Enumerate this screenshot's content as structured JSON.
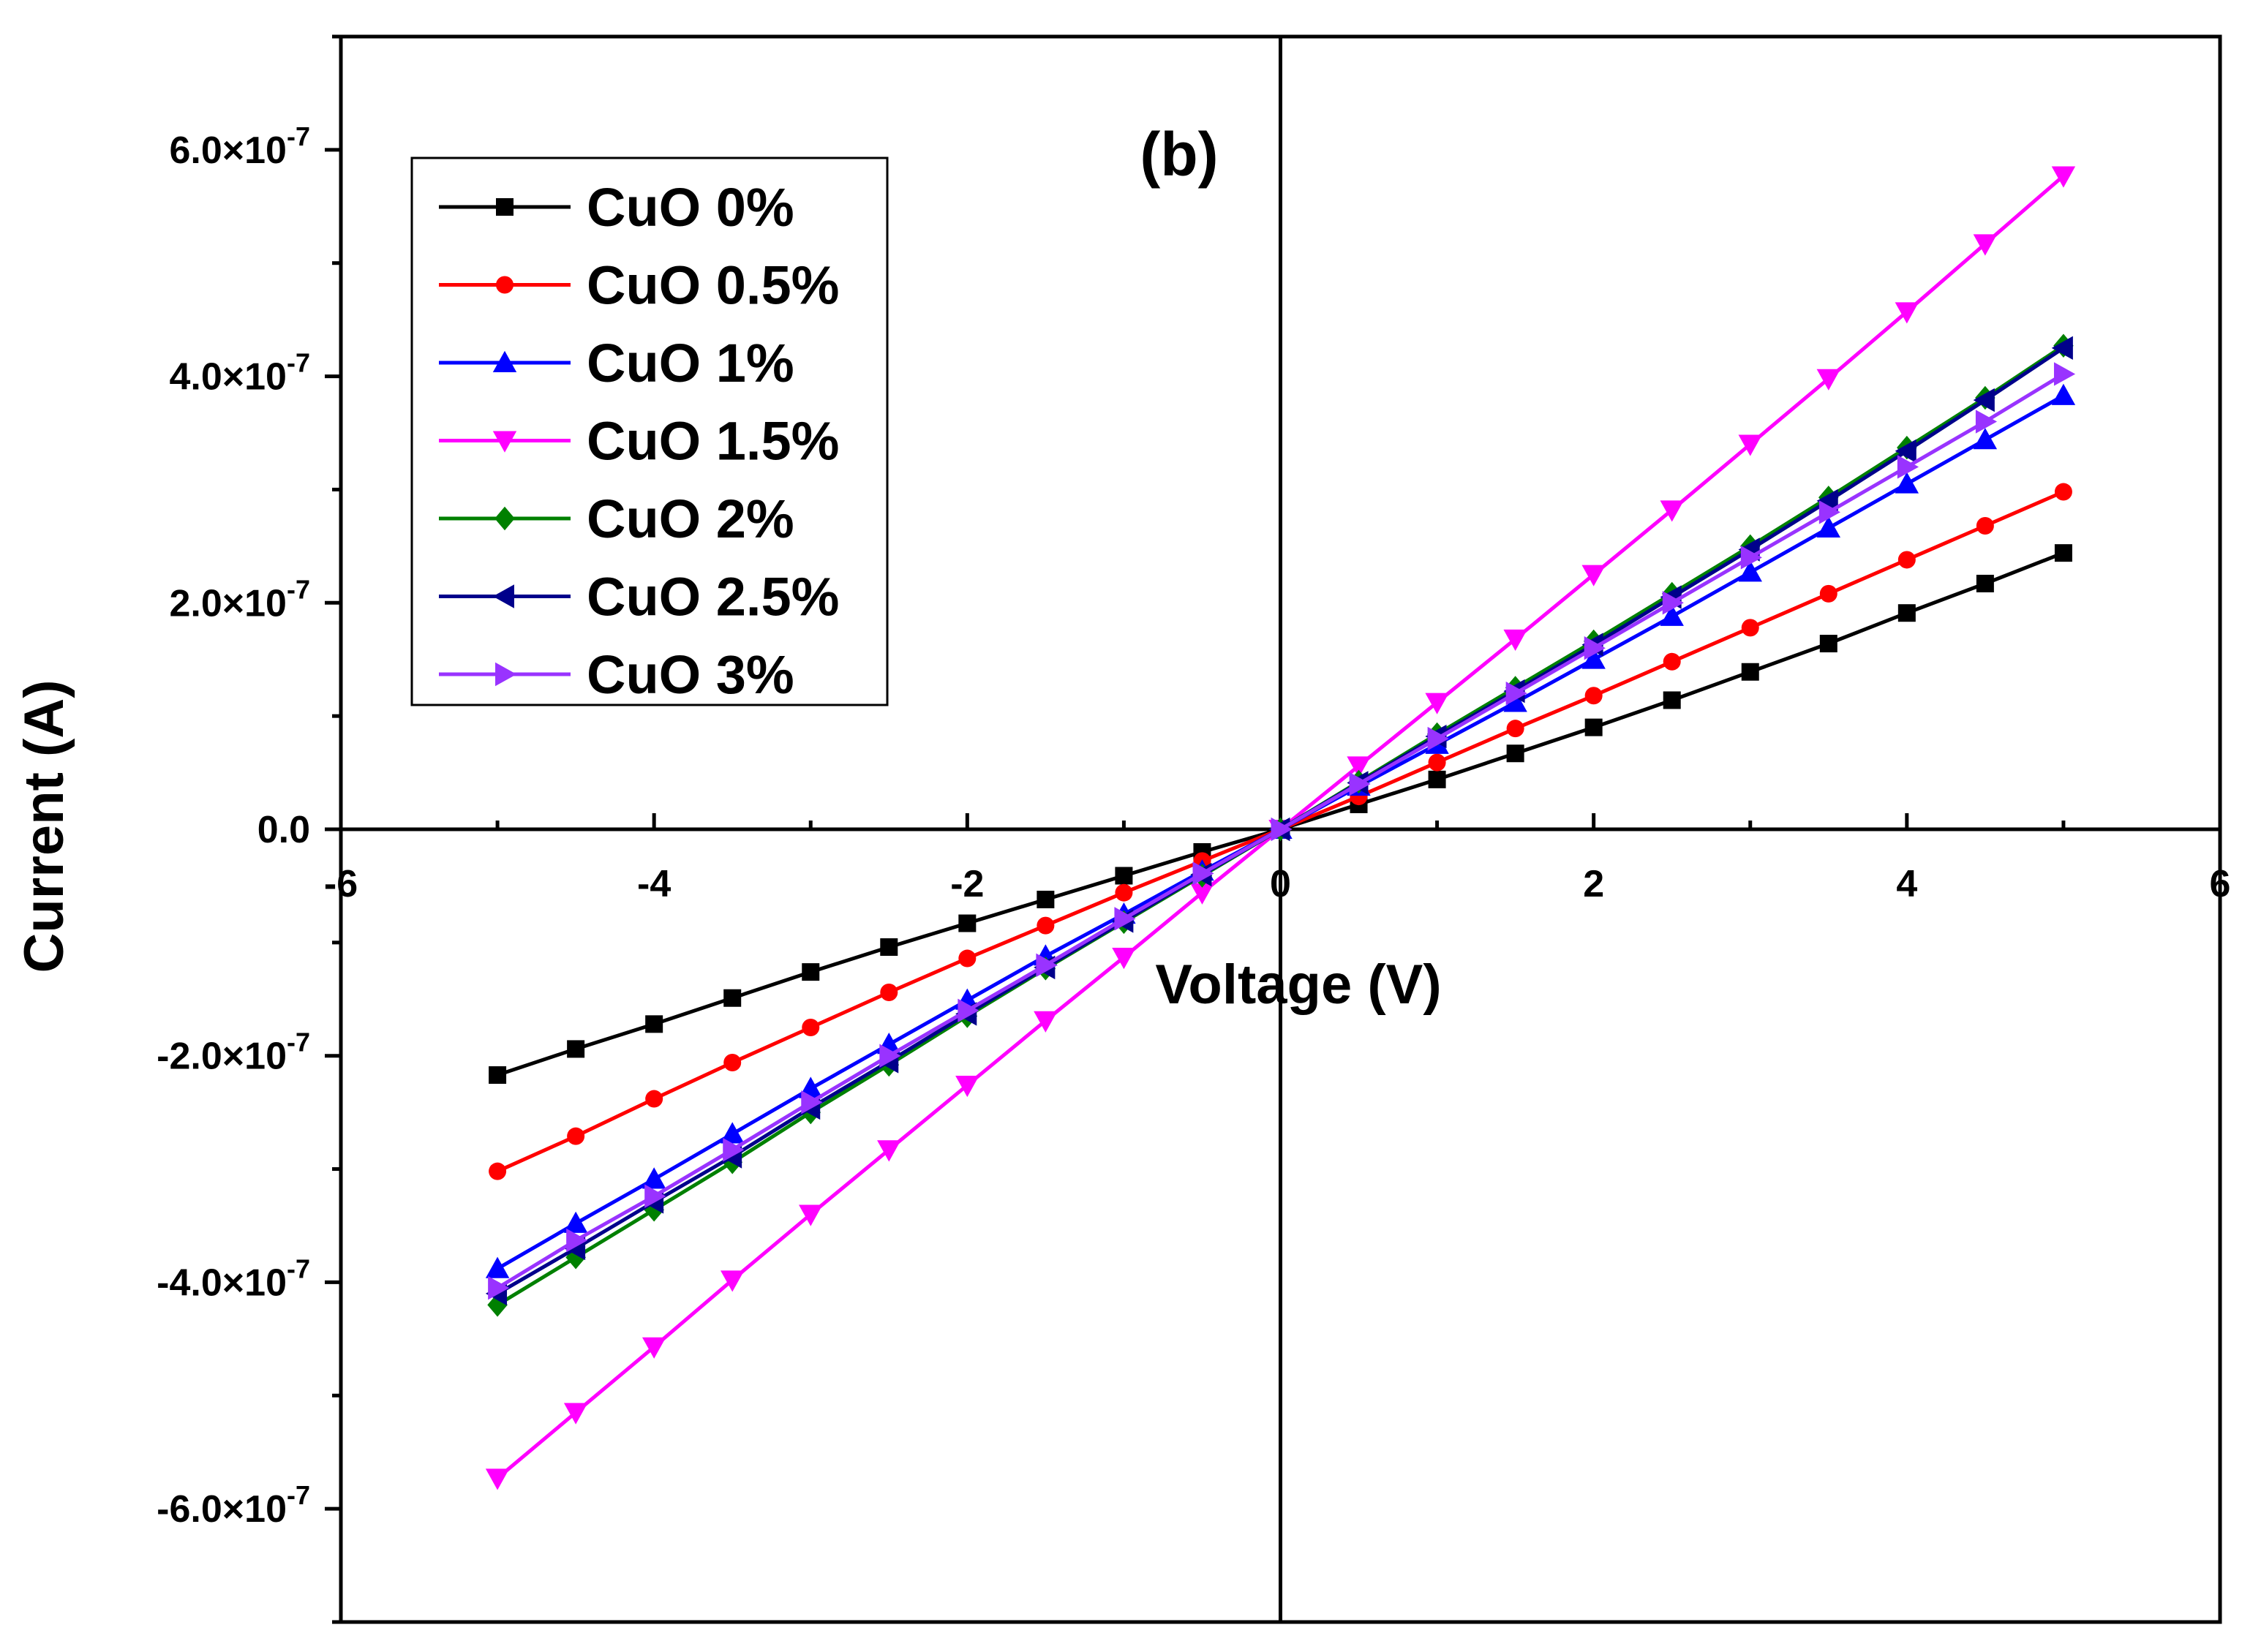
{
  "chart_data": {
    "type": "line",
    "panel_label": "(b)",
    "xlabel": "Voltage (V)",
    "ylabel": "Current (A)",
    "xlim": [
      -6,
      6
    ],
    "ylim": [
      -7e-07,
      7e-07
    ],
    "x_ticks": [
      -6,
      -4,
      -2,
      0,
      2,
      4,
      6
    ],
    "x_tick_labels": [
      "-6",
      "-4",
      "-2",
      "0",
      "2",
      "4",
      "6"
    ],
    "y_ticks": [
      -6e-07,
      -4e-07,
      -2e-07,
      0,
      2e-07,
      4e-07,
      6e-07
    ],
    "y_tick_labels": [
      "-6.0×10",
      "-4.0×10",
      "-2.0×10",
      "0.0",
      "2.0×10",
      "4.0×10",
      "6.0×10"
    ],
    "y_tick_exponents": [
      "-7",
      "-7",
      "-7",
      "",
      "-7",
      "-7",
      "-7"
    ],
    "legend_position": "top-left",
    "grid": false,
    "x": [
      -5,
      -4.5,
      -4,
      -3.5,
      -3,
      -2.5,
      -2,
      -1.5,
      -1,
      -0.5,
      0,
      0.5,
      1,
      1.5,
      2,
      2.5,
      3,
      3.5,
      4,
      4.5,
      5
    ],
    "series": [
      {
        "name": "CuO 0%",
        "color": "#000000",
        "marker": "square",
        "values": [
          -2.17e-07,
          -1.94e-07,
          -1.72e-07,
          -1.49e-07,
          -1.26e-07,
          -1.04e-07,
          -8.3e-08,
          -6.2e-08,
          -4.1e-08,
          -2e-08,
          0,
          2.2e-08,
          4.4e-08,
          6.7e-08,
          9e-08,
          1.14e-07,
          1.39e-07,
          1.64e-07,
          1.91e-07,
          2.17e-07,
          2.44e-07
        ]
      },
      {
        "name": "CuO 0.5%",
        "color": "#ff0000",
        "marker": "circle",
        "values": [
          -3.02e-07,
          -2.71e-07,
          -2.38e-07,
          -2.06e-07,
          -1.75e-07,
          -1.44e-07,
          -1.14e-07,
          -8.5e-08,
          -5.6e-08,
          -2.8e-08,
          0,
          2.9e-08,
          5.9e-08,
          8.9e-08,
          1.18e-07,
          1.48e-07,
          1.78e-07,
          2.08e-07,
          2.38e-07,
          2.68e-07,
          2.98e-07
        ]
      },
      {
        "name": "CuO 1%",
        "color": "#0000ff",
        "marker": "triangle-up",
        "values": [
          -3.88e-07,
          -3.48e-07,
          -3.09e-07,
          -2.69e-07,
          -2.29e-07,
          -1.9e-07,
          -1.51e-07,
          -1.12e-07,
          -7.5e-08,
          -3.7e-08,
          0,
          3.8e-08,
          7.5e-08,
          1.12e-07,
          1.5e-07,
          1.88e-07,
          2.27e-07,
          2.66e-07,
          3.05e-07,
          3.44e-07,
          3.83e-07
        ]
      },
      {
        "name": "CuO 1.5%",
        "color": "#ff00ff",
        "marker": "triangle-down",
        "values": [
          -5.73e-07,
          -5.15e-07,
          -4.57e-07,
          -3.98e-07,
          -3.4e-07,
          -2.83e-07,
          -2.26e-07,
          -1.69e-07,
          -1.13e-07,
          -5.6e-08,
          0,
          5.6e-08,
          1.12e-07,
          1.68e-07,
          2.25e-07,
          2.82e-07,
          3.4e-07,
          3.98e-07,
          4.57e-07,
          5.17e-07,
          5.77e-07
        ]
      },
      {
        "name": "CuO 2%",
        "color": "#008000",
        "marker": "diamond",
        "values": [
          -4.2e-07,
          -3.78e-07,
          -3.36e-07,
          -2.94e-07,
          -2.5e-07,
          -2.08e-07,
          -1.65e-07,
          -1.23e-07,
          -8.2e-08,
          -4.1e-08,
          0,
          4.2e-08,
          8.4e-08,
          1.25e-07,
          1.66e-07,
          2.08e-07,
          2.5e-07,
          2.93e-07,
          3.37e-07,
          3.81e-07,
          4.27e-07
        ]
      },
      {
        "name": "CuO 2.5%",
        "color": "#00008b",
        "marker": "triangle-left",
        "values": [
          -4.1e-07,
          -3.7e-07,
          -3.29e-07,
          -2.89e-07,
          -2.46e-07,
          -2.05e-07,
          -1.63e-07,
          -1.22e-07,
          -8.1e-08,
          -4e-08,
          0,
          4.1e-08,
          8.2e-08,
          1.22e-07,
          1.63e-07,
          2.05e-07,
          2.47e-07,
          2.9e-07,
          3.34e-07,
          3.79e-07,
          4.25e-07
        ]
      },
      {
        "name": "CuO 3%",
        "color": "#9933ff",
        "marker": "triangle-right",
        "values": [
          -4.05e-07,
          -3.63e-07,
          -3.24e-07,
          -2.83e-07,
          -2.41e-07,
          -2e-07,
          -1.6e-07,
          -1.2e-07,
          -7.9e-08,
          -3.9e-08,
          0,
          4e-08,
          8e-08,
          1.2e-07,
          1.6e-07,
          2e-07,
          2.4e-07,
          2.8e-07,
          3.2e-07,
          3.6e-07,
          4.02e-07
        ]
      }
    ]
  }
}
